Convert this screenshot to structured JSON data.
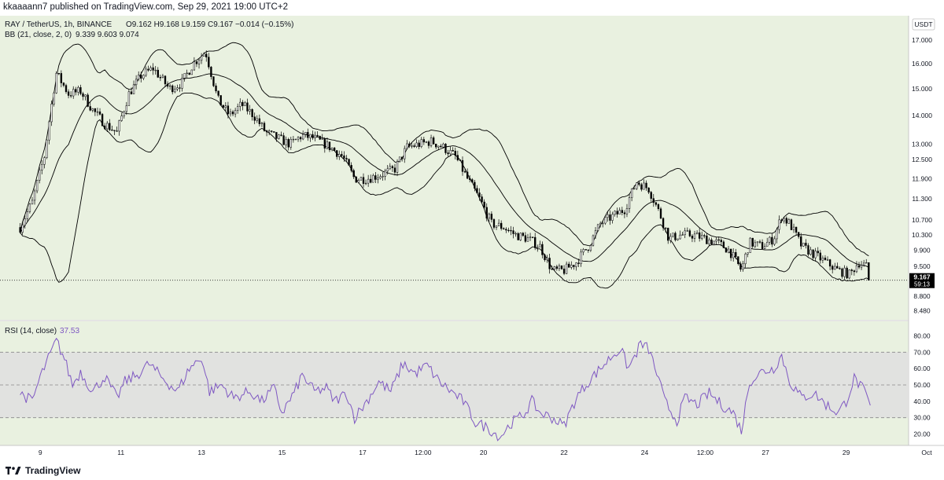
{
  "header": {
    "publisher_text": "kkaaaann7 published on TradingView.com, Sep 29, 2021 19:00 UTC+2"
  },
  "legend": {
    "symbol": "RAY / TetherUS, 1h, BINANCE",
    "ohlc": "O9.162  H9.168  L9.159  C9.167  −0.014 (−0.15%)",
    "bb_label": "BB (21, close, 2, 0)",
    "bb_values": "9.339  9.603  9.074",
    "rsi_label": "RSI (14, close)",
    "rsi_value": "37.53"
  },
  "footer": {
    "logo_text": "TradingView"
  },
  "colors": {
    "background": "#e9f1e0",
    "candles": "#000000",
    "bands": "#000000",
    "rsi_line": "#7e57c2",
    "rsi_band_fill": "#e0e0e0",
    "price_label_bg": "#000000"
  },
  "chart_data": [
    {
      "type": "candlestick",
      "title": "RAY / TetherUS, 1h, BINANCE",
      "currency": "USDT",
      "y_scale": "log",
      "ylim": [
        8.4,
        17.8
      ],
      "y_ticks": [
        17.0,
        16.0,
        15.0,
        14.0,
        13.0,
        12.5,
        11.9,
        11.3,
        10.7,
        10.3,
        9.9,
        9.5,
        8.8,
        8.48
      ],
      "y_tick_labels": [
        "17.000",
        "16.000",
        "15.000",
        "14.000",
        "13.000",
        "12.500",
        "11.900",
        "11.300",
        "10.700",
        "10.300",
        "9.900",
        "9.500",
        "8.800",
        "8.480"
      ],
      "x_labels": [
        "9",
        "11",
        "13",
        "15",
        "17",
        "12:00",
        "20",
        "22",
        "24",
        "12:00",
        "27",
        "29",
        "Oct"
      ],
      "last_price": "9.167",
      "countdown": "59:13",
      "close_series": [
        [
          8.5,
          10.5
        ],
        [
          8.8,
          11.2
        ],
        [
          9.1,
          12.6
        ],
        [
          9.4,
          15.6
        ],
        [
          9.7,
          14.8
        ],
        [
          10.0,
          14.9
        ],
        [
          10.3,
          14.2
        ],
        [
          10.6,
          13.7
        ],
        [
          10.9,
          13.4
        ],
        [
          11.2,
          14.8
        ],
        [
          11.5,
          15.5
        ],
        [
          11.8,
          15.8
        ],
        [
          12.2,
          15.0
        ],
        [
          12.5,
          15.2
        ],
        [
          12.8,
          16.0
        ],
        [
          13.1,
          16.5
        ],
        [
          13.4,
          14.6
        ],
        [
          13.7,
          14.0
        ],
        [
          14.0,
          14.4
        ],
        [
          14.3,
          14.0
        ],
        [
          14.6,
          13.4
        ],
        [
          14.9,
          13.2
        ],
        [
          15.2,
          13.0
        ],
        [
          15.5,
          13.3
        ],
        [
          15.8,
          13.2
        ],
        [
          16.2,
          12.9
        ],
        [
          16.5,
          12.6
        ],
        [
          16.8,
          11.9
        ],
        [
          17.1,
          11.9
        ],
        [
          17.4,
          12.0
        ],
        [
          17.8,
          12.2
        ],
        [
          18.1,
          12.9
        ],
        [
          18.4,
          13.0
        ],
        [
          18.7,
          13.1
        ],
        [
          19.0,
          12.9
        ],
        [
          19.3,
          12.6
        ],
        [
          19.6,
          11.9
        ],
        [
          19.9,
          11.3
        ],
        [
          20.2,
          10.6
        ],
        [
          20.5,
          10.5
        ],
        [
          20.8,
          10.3
        ],
        [
          21.1,
          10.2
        ],
        [
          21.4,
          10.0
        ],
        [
          21.7,
          9.4
        ],
        [
          22.0,
          9.4
        ],
        [
          22.3,
          9.6
        ],
        [
          22.6,
          10.0
        ],
        [
          22.9,
          10.6
        ],
        [
          23.2,
          10.8
        ],
        [
          23.5,
          11.0
        ],
        [
          23.8,
          11.8
        ],
        [
          24.1,
          11.6
        ],
        [
          24.4,
          10.8
        ],
        [
          24.6,
          10.2
        ],
        [
          24.9,
          10.3
        ],
        [
          25.2,
          10.3
        ],
        [
          25.5,
          10.2
        ],
        [
          25.8,
          10.1
        ],
        [
          26.1,
          9.9
        ],
        [
          26.4,
          9.4
        ],
        [
          26.6,
          10.1
        ],
        [
          26.9,
          10.0
        ],
        [
          27.2,
          10.2
        ],
        [
          27.4,
          10.8
        ],
        [
          27.6,
          10.6
        ],
        [
          27.9,
          10.0
        ],
        [
          28.2,
          9.8
        ],
        [
          28.5,
          9.6
        ],
        [
          28.8,
          9.4
        ],
        [
          29.1,
          9.3
        ],
        [
          29.3,
          9.6
        ],
        [
          29.5,
          9.5
        ],
        [
          29.6,
          9.167
        ]
      ]
    },
    {
      "type": "line",
      "title": "RSI (14, close)",
      "ylim": [
        14,
        86
      ],
      "y_ticks": [
        80.0,
        70.0,
        60.0,
        50.0,
        40.0,
        30.0,
        20.0
      ],
      "y_tick_labels": [
        "80.00",
        "70.00",
        "60.00",
        "50.00",
        "40.00",
        "30.00",
        "20.00"
      ],
      "dashed_levels": [
        70,
        50,
        30
      ],
      "band": [
        30,
        70
      ],
      "last_value": "37.53",
      "series": [
        [
          8.5,
          45
        ],
        [
          8.8,
          40
        ],
        [
          9.0,
          55
        ],
        [
          9.2,
          66
        ],
        [
          9.4,
          77
        ],
        [
          9.6,
          66
        ],
        [
          9.8,
          50
        ],
        [
          10.0,
          58
        ],
        [
          10.3,
          46
        ],
        [
          10.6,
          55
        ],
        [
          10.9,
          42
        ],
        [
          11.1,
          52
        ],
        [
          11.4,
          56
        ],
        [
          11.7,
          63
        ],
        [
          12.0,
          55
        ],
        [
          12.4,
          46
        ],
        [
          12.7,
          60
        ],
        [
          13.0,
          67
        ],
        [
          13.2,
          46
        ],
        [
          13.5,
          50
        ],
        [
          13.8,
          42
        ],
        [
          14.2,
          46
        ],
        [
          14.5,
          40
        ],
        [
          14.8,
          48
        ],
        [
          15.0,
          33
        ],
        [
          15.3,
          45
        ],
        [
          15.5,
          56
        ],
        [
          15.8,
          46
        ],
        [
          16.1,
          48
        ],
        [
          16.3,
          40
        ],
        [
          16.6,
          45
        ],
        [
          16.8,
          30
        ],
        [
          17.1,
          40
        ],
        [
          17.4,
          52
        ],
        [
          17.7,
          46
        ],
        [
          18.0,
          63
        ],
        [
          18.3,
          57
        ],
        [
          18.6,
          62
        ],
        [
          18.9,
          52
        ],
        [
          19.2,
          46
        ],
        [
          19.5,
          40
        ],
        [
          19.8,
          27
        ],
        [
          20.1,
          24
        ],
        [
          20.4,
          18
        ],
        [
          20.7,
          27
        ],
        [
          21.0,
          32
        ],
        [
          21.2,
          40
        ],
        [
          21.4,
          33
        ],
        [
          21.7,
          30
        ],
        [
          22.0,
          25
        ],
        [
          22.3,
          42
        ],
        [
          22.6,
          52
        ],
        [
          22.9,
          60
        ],
        [
          23.2,
          68
        ],
        [
          23.4,
          72
        ],
        [
          23.6,
          60
        ],
        [
          23.9,
          75
        ],
        [
          24.1,
          72
        ],
        [
          24.3,
          57
        ],
        [
          24.5,
          40
        ],
        [
          24.8,
          28
        ],
        [
          25.0,
          42
        ],
        [
          25.3,
          38
        ],
        [
          25.6,
          45
        ],
        [
          25.9,
          38
        ],
        [
          26.2,
          33
        ],
        [
          26.4,
          22
        ],
        [
          26.6,
          52
        ],
        [
          26.9,
          58
        ],
        [
          27.2,
          60
        ],
        [
          27.4,
          68
        ],
        [
          27.6,
          52
        ],
        [
          27.9,
          42
        ],
        [
          28.2,
          45
        ],
        [
          28.5,
          38
        ],
        [
          28.8,
          33
        ],
        [
          29.0,
          40
        ],
        [
          29.2,
          54
        ],
        [
          29.4,
          48
        ],
        [
          29.6,
          37.53
        ]
      ]
    }
  ]
}
